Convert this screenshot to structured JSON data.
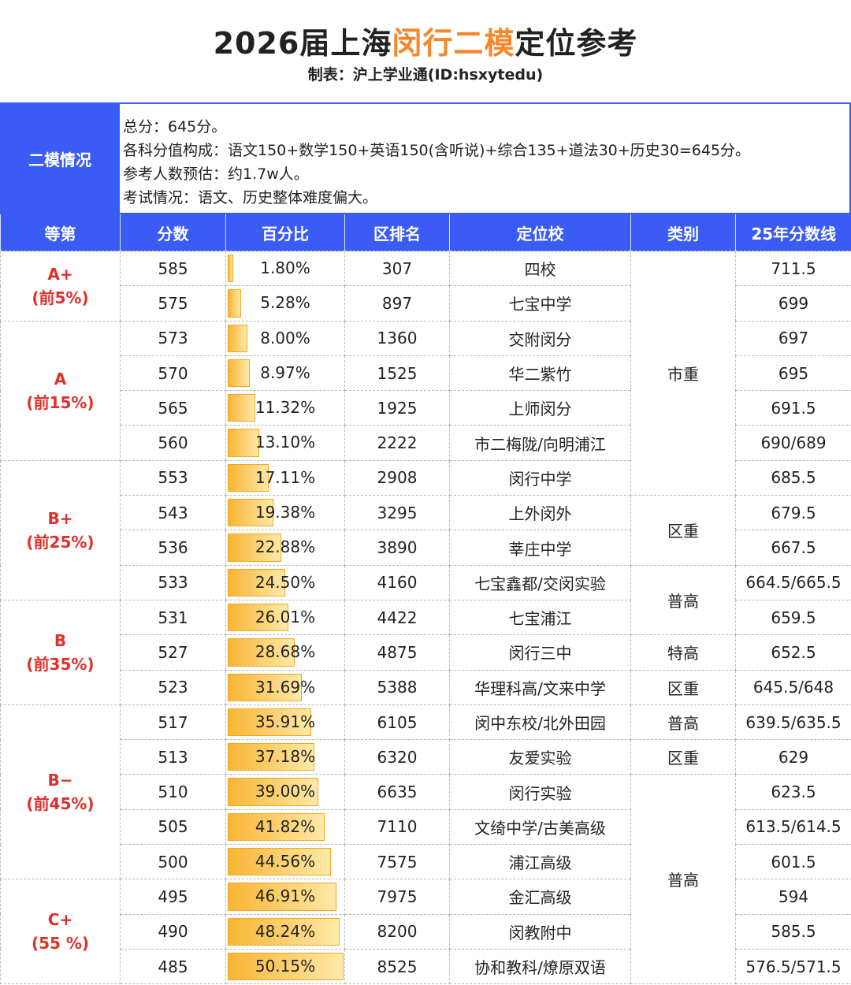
{
  "header": {
    "title": [
      "2026届上海",
      "闵行二模",
      "定位参考"
    ],
    "subtitle": "制表：沪上学业通(ID:hsxytedu)"
  },
  "info": {
    "label": "二模情况",
    "lines": [
      "总分：645分。",
      "各科分值构成：语文150+数学150+英语150(含听说)+综合135+道法30+历史30=645分。",
      "参考人数预估：约1.7w人。",
      "考试情况：语文、历史整体难度偏大。"
    ]
  },
  "table": {
    "columns": [
      "等第",
      "分数",
      "百分比",
      "区排名",
      "定位校",
      "类别",
      "25年分数线"
    ],
    "groups": [
      {
        "grade": "A+",
        "note": "(前5%)",
        "rows": [
          [
            "585",
            "1.80%",
            "307",
            "四校",
            "市重",
            "711.5"
          ],
          [
            "575",
            "5.28%",
            "897",
            "七宝中学",
            null,
            "699"
          ]
        ]
      },
      {
        "grade": "A",
        "note": "(前15%)",
        "rows": [
          [
            "573",
            "8.00%",
            "1360",
            "交附闵分",
            null,
            "697"
          ],
          [
            "570",
            "8.97%",
            "1525",
            "华二紫竹",
            null,
            "695"
          ],
          [
            "565",
            "11.32%",
            "1925",
            "上师闵分",
            null,
            "691.5"
          ],
          [
            "560",
            "13.10%",
            "2222",
            "市二梅陇/向明浦江",
            null,
            "690/689"
          ]
        ]
      },
      {
        "grade": "B+",
        "note": "(前25%)",
        "rows": [
          [
            "553",
            "17.11%",
            "2908",
            "闵行中学",
            null,
            "685.5"
          ],
          [
            "543",
            "19.38%",
            "3295",
            "上外闵外",
            "区重",
            "679.5"
          ],
          [
            "536",
            "22.88%",
            "3890",
            "莘庄中学",
            null,
            "667.5"
          ],
          [
            "533",
            "24.50%",
            "4160",
            "七宝鑫都/交闵实验",
            "普高",
            "664.5/665.5"
          ]
        ]
      },
      {
        "grade": "B",
        "note": "(前35%)",
        "rows": [
          [
            "531",
            "26.01%",
            "4422",
            "七宝浦江",
            null,
            "659.5"
          ],
          [
            "527",
            "28.68%",
            "4875",
            "闵行三中",
            "特高",
            "652.5"
          ],
          [
            "523",
            "31.69%",
            "5388",
            "华理科高/文来中学",
            "区重",
            "645.5/648"
          ]
        ]
      },
      {
        "grade": "B−",
        "note": "(前45%)",
        "rows": [
          [
            "517",
            "35.91%",
            "6105",
            "闵中东校/北外田园",
            "普高",
            "639.5/635.5"
          ],
          [
            "513",
            "37.18%",
            "6320",
            "友爱实验",
            "区重",
            "629"
          ],
          [
            "510",
            "39.00%",
            "6635",
            "闵行实验",
            "普高",
            "623.5"
          ],
          [
            "505",
            "41.82%",
            "7110",
            "文绮中学/古美高级",
            null,
            "613.5/614.5"
          ],
          [
            "500",
            "44.56%",
            "7575",
            "浦江高级",
            null,
            "601.5"
          ]
        ]
      },
      {
        "grade": "C+",
        "note": "(55 %)",
        "rows": [
          [
            "495",
            "46.91%",
            "7975",
            "金汇高级",
            null,
            "594"
          ],
          [
            "490",
            "48.24%",
            "8200",
            "闵教附中",
            null,
            "585.5"
          ],
          [
            "485",
            "50.15%",
            "8525",
            "协和教科/燎原双语",
            null,
            "576.5/571.5"
          ]
        ]
      }
    ]
  }
}
